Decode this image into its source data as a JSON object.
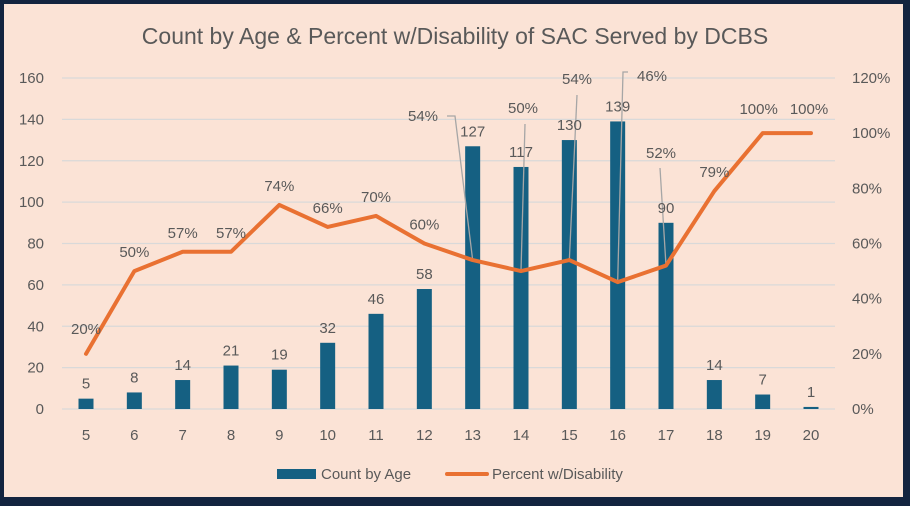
{
  "chart_data": {
    "type": "bar",
    "title": "Count by Age & Percent w/Disability of SAC Served by DCBS",
    "xlabel": "",
    "ylabel": "",
    "y2label": "",
    "categories": [
      "5",
      "6",
      "7",
      "8",
      "9",
      "10",
      "11",
      "12",
      "13",
      "14",
      "15",
      "16",
      "17",
      "18",
      "19",
      "20"
    ],
    "series": [
      {
        "name": "Count by Age",
        "type": "bar",
        "axis": "left",
        "color": "#156082",
        "values": [
          5,
          8,
          14,
          21,
          19,
          32,
          46,
          58,
          127,
          117,
          130,
          139,
          90,
          14,
          7,
          1
        ],
        "labels": [
          "5",
          "8",
          "14",
          "21",
          "19",
          "32",
          "46",
          "58",
          "127",
          "117",
          "130",
          "139",
          "90",
          "14",
          "7",
          "1"
        ]
      },
      {
        "name": "Percent w/Disability",
        "type": "line",
        "axis": "right",
        "color": "#e97132",
        "values": [
          20,
          50,
          57,
          57,
          74,
          66,
          70,
          60,
          54,
          50,
          54,
          46,
          52,
          79,
          100,
          100
        ],
        "labels": [
          "20%",
          "50%",
          "57%",
          "57%",
          "74%",
          "66%",
          "70%",
          "60%",
          "54%",
          "50%",
          "54%",
          "46%",
          "52%",
          "79%",
          "100%",
          "100%"
        ]
      }
    ],
    "ylim": [
      0,
      160
    ],
    "y2lim": [
      0,
      120
    ],
    "yticks": [
      "0",
      "20",
      "40",
      "60",
      "80",
      "100",
      "120",
      "140",
      "160"
    ],
    "y2ticks": [
      "0%",
      "20%",
      "40%",
      "60%",
      "80%",
      "100%",
      "120%"
    ],
    "grid": true,
    "legend": "bottom",
    "colors": {
      "background": "#fbe3d6",
      "border": "#13243f",
      "gridline": "#d9d9d9",
      "text": "#595959",
      "leader": "#a6a6a6"
    }
  }
}
